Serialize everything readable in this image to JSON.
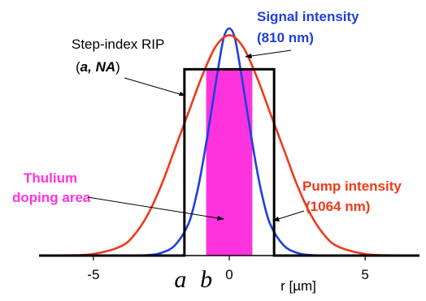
{
  "chart_data": {
    "type": "line",
    "xlabel": "r [µm]",
    "xlim": [
      -7,
      7
    ],
    "x_ticks": [
      -5,
      0,
      5
    ],
    "x_tick_labels": [
      "-5",
      "0",
      "5"
    ],
    "y_axis_visible": false,
    "grid": false,
    "legend": "none",
    "series": [
      {
        "name": "Signal intensity",
        "color": "#1f3fe0",
        "x": [
          -7,
          -6,
          -5,
          -4,
          -3,
          -2.5,
          -2,
          -1.5,
          -1.2,
          -1,
          -0.8,
          -0.6,
          -0.4,
          -0.2,
          0,
          0.2,
          0.4,
          0.6,
          0.8,
          1,
          1.2,
          1.5,
          2,
          2.5,
          3,
          4,
          5,
          6,
          7
        ],
        "y": [
          0,
          0,
          0,
          0,
          0.002,
          0.012,
          0.045,
          0.14,
          0.27,
          0.39,
          0.53,
          0.68,
          0.83,
          0.96,
          1.0,
          0.96,
          0.83,
          0.68,
          0.53,
          0.39,
          0.27,
          0.14,
          0.045,
          0.012,
          0.002,
          0,
          0,
          0,
          0
        ]
      },
      {
        "name": "Pump intensity",
        "color": "#ee3a1a",
        "x": [
          -7,
          -6,
          -5,
          -4,
          -3.5,
          -3,
          -2.5,
          -2,
          -1.5,
          -1,
          -0.5,
          0,
          0.5,
          1,
          1.5,
          2,
          2.5,
          3,
          3.5,
          4,
          5,
          6,
          7
        ],
        "y": [
          0,
          0.001,
          0.007,
          0.04,
          0.09,
          0.18,
          0.31,
          0.47,
          0.63,
          0.79,
          0.92,
          0.97,
          0.92,
          0.79,
          0.63,
          0.47,
          0.31,
          0.18,
          0.09,
          0.04,
          0.007,
          0.001,
          0
        ]
      },
      {
        "name": "Step-index RIP",
        "color": "#000000",
        "x": [
          -7,
          -1.65,
          -1.65,
          1.65,
          1.65,
          7
        ],
        "y": [
          0,
          0,
          0.82,
          0.82,
          0,
          0
        ]
      }
    ],
    "regions": [
      {
        "name": "Thulium doping area",
        "x0": -0.85,
        "x1": 0.85,
        "y": 0.82,
        "color": "#ff33dd"
      }
    ],
    "axis_markers": [
      {
        "text": "a",
        "x": -1.8
      },
      {
        "text": "b",
        "x": -0.85
      }
    ],
    "annotations": {
      "signal": {
        "line1": "Signal intensity",
        "line2": "(810 nm)"
      },
      "rip": {
        "line1": "Step-index RIP",
        "line2_open": "(",
        "line2_italic": "a, NA",
        "line2_close": ")"
      },
      "doping": {
        "line1": "Thulium",
        "line2": "doping area"
      },
      "pump": {
        "line1": "Pump intensity",
        "line2": "(1064 nm)"
      }
    }
  }
}
